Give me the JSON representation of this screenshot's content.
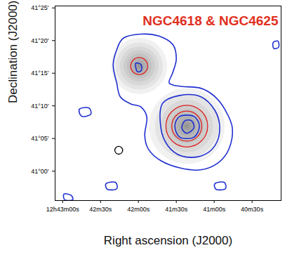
{
  "chart_data": {
    "type": "contour",
    "title": "NGC4618 & NGC4625",
    "x_label": "Right ascension (J2000)",
    "y_label": "Declination (J2000)",
    "xlim": [
      2586,
      2407
    ],
    "ylim": [
      2455.5,
      2485.3
    ],
    "xticks": [
      {
        "value": 2580,
        "label": "12h43m00s"
      },
      {
        "value": 2550,
        "label": "42m30s"
      },
      {
        "value": 2520,
        "label": "42m00s"
      },
      {
        "value": 2490,
        "label": "41m30s"
      },
      {
        "value": 2460,
        "label": "41m00s"
      },
      {
        "value": 2430,
        "label": "40m30s"
      }
    ],
    "yticks": [
      {
        "value": 2485,
        "label": "41°25'"
      },
      {
        "value": 2480,
        "label": "41°20'"
      },
      {
        "value": 2475,
        "label": "41°15'"
      },
      {
        "value": 2470,
        "label": "41°10'"
      },
      {
        "value": 2465,
        "label": "41°05'"
      },
      {
        "value": 2460,
        "label": "41°00'"
      }
    ],
    "color": "#1f2fd0",
    "galaxies": [
      {
        "ra": 2519.4,
        "dec": 2476.1,
        "radius": 4.3
      },
      {
        "ra": 2481.7,
        "dec": 2466.9,
        "radius": 5.8
      }
    ],
    "circles": [
      {
        "ra": 2519.4,
        "dec": 2476.1,
        "radius": 1.3,
        "color": "#e02020"
      },
      {
        "ra": 2481.7,
        "dec": 2466.9,
        "radius": 2.3,
        "color": "#e02020"
      },
      {
        "ra": 2481.7,
        "dec": 2466.9,
        "radius": 3.2,
        "color": "#e02020"
      },
      {
        "ra": 2535.6,
        "dec": 2463.2,
        "radius": 0.6,
        "color": "#000000"
      }
    ],
    "contours": [
      [
        [
          2531.7,
          2480.4
        ],
        [
          2517.8,
          2481.0
        ],
        [
          2503.9,
          2480.7
        ],
        [
          2492.8,
          2479.4
        ],
        [
          2490.0,
          2477.2
        ],
        [
          2492.8,
          2475.1
        ],
        [
          2495.6,
          2473.5
        ],
        [
          2487.2,
          2473.0
        ],
        [
          2470.6,
          2472.7
        ],
        [
          2459.4,
          2471.4
        ],
        [
          2451.1,
          2469.3
        ],
        [
          2445.6,
          2466.6
        ],
        [
          2448.3,
          2463.4
        ],
        [
          2456.7,
          2461.3
        ],
        [
          2470.6,
          2460.2
        ],
        [
          2487.2,
          2460.5
        ],
        [
          2502.2,
          2461.6
        ],
        [
          2512.2,
          2463.4
        ],
        [
          2515.0,
          2465.5
        ],
        [
          2513.3,
          2468.2
        ],
        [
          2517.8,
          2469.8
        ],
        [
          2526.1,
          2470.3
        ],
        [
          2534.4,
          2471.4
        ],
        [
          2537.2,
          2473.5
        ],
        [
          2540.0,
          2476.2
        ],
        [
          2537.2,
          2478.6
        ]
      ],
      [
        [
          2501.1,
          2470.3
        ],
        [
          2487.2,
          2471.6
        ],
        [
          2470.6,
          2471.4
        ],
        [
          2459.4,
          2469.3
        ],
        [
          2455.6,
          2466.6
        ],
        [
          2459.4,
          2463.9
        ],
        [
          2470.6,
          2462.3
        ],
        [
          2485.6,
          2462.3
        ],
        [
          2496.7,
          2463.9
        ],
        [
          2502.2,
          2466.6
        ]
      ],
      [
        [
          2487.2,
          2468.4
        ],
        [
          2476.1,
          2468.4
        ],
        [
          2471.7,
          2466.9
        ],
        [
          2476.1,
          2465.2
        ],
        [
          2487.2,
          2465.2
        ],
        [
          2491.1,
          2466.9
        ]
      ],
      [
        [
          2483.3,
          2467.7
        ],
        [
          2477.8,
          2467.7
        ],
        [
          2476.1,
          2466.6
        ],
        [
          2481.7,
          2465.8
        ],
        [
          2485.6,
          2466.6
        ]
      ],
      [
        [
          2522.2,
          2476.5
        ],
        [
          2517.8,
          2476.3
        ],
        [
          2517.8,
          2475.4
        ],
        [
          2521.1,
          2475.3
        ]
      ],
      [
        [
          2566.7,
          2469.5
        ],
        [
          2559.4,
          2469.7
        ],
        [
          2557.8,
          2468.7
        ],
        [
          2565.0,
          2468.4
        ]
      ],
      [
        [
          2545.6,
          2458.1
        ],
        [
          2538.3,
          2458.3
        ],
        [
          2537.2,
          2457.3
        ],
        [
          2544.4,
          2457.2
        ]
      ],
      [
        [
          2459.4,
          2458.1
        ],
        [
          2452.2,
          2458.3
        ],
        [
          2451.1,
          2457.3
        ],
        [
          2458.3,
          2457.2
        ]
      ],
      [
        [
          2578.9,
          2456.5
        ],
        [
          2573.3,
          2456.3
        ],
        [
          2572.2,
          2455.6
        ],
        [
          2578.3,
          2455.6
        ]
      ],
      [
        [
          2413.3,
          2479.7
        ],
        [
          2409.4,
          2479.9
        ],
        [
          2408.9,
          2479.0
        ],
        [
          2412.8,
          2478.8
        ]
      ]
    ]
  }
}
